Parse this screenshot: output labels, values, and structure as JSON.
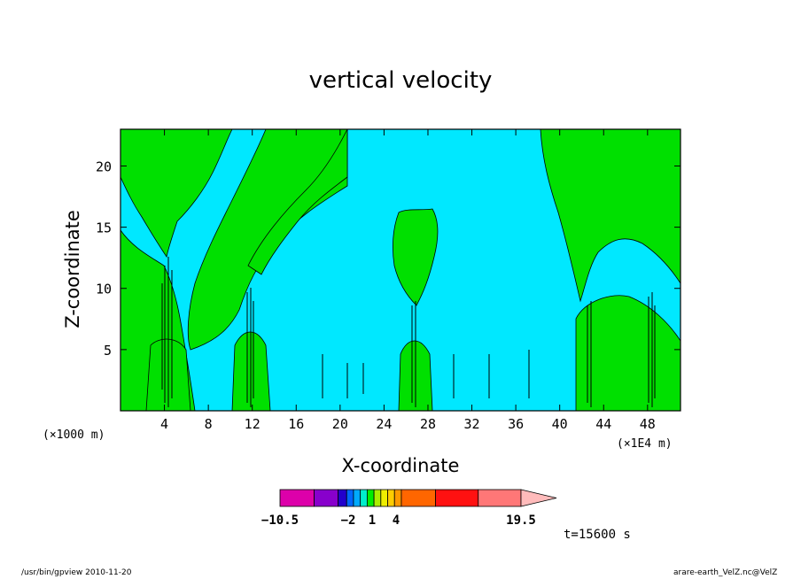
{
  "chart_data": {
    "type": "heatmap",
    "title": "vertical velocity",
    "xlabel": "X-coordinate",
    "ylabel": "Z-coordinate",
    "x_unit_left": "(×1000 m)",
    "x_unit_right": "(×1E4 m)",
    "xticks": [
      4,
      8,
      12,
      16,
      20,
      24,
      28,
      32,
      36,
      40,
      44,
      48
    ],
    "yticks": [
      5,
      10,
      15,
      20
    ],
    "xlim": [
      0,
      51
    ],
    "ylim": [
      0,
      23
    ],
    "colorbar": {
      "levels": [
        -10.5,
        -8,
        -6,
        -4,
        -2,
        1,
        4,
        19.5
      ],
      "tick_labels": [
        "−10.5",
        "−2",
        "1",
        "4",
        "19.5"
      ],
      "colors": [
        "#dd00aa",
        "#8800cc",
        "#2200cc",
        "#0066ff",
        "#00aaff",
        "#00eecc",
        "#00ee00",
        "#aaee00",
        "#eeee00",
        "#ffcc00",
        "#ff9900",
        "#ff6600",
        "#ff1111",
        "#ff7777",
        "#ffbbbb"
      ],
      "extend": "max"
    },
    "time_label": "t=15600 s",
    "fill_colors": {
      "background": "#00e8ff",
      "positive": "#00e000",
      "contour": "#000000"
    },
    "grid": false
  },
  "footer": {
    "left": "/usr/bin/gpview  2010-11-20",
    "right": "arare-earth_VelZ.nc@VelZ"
  }
}
